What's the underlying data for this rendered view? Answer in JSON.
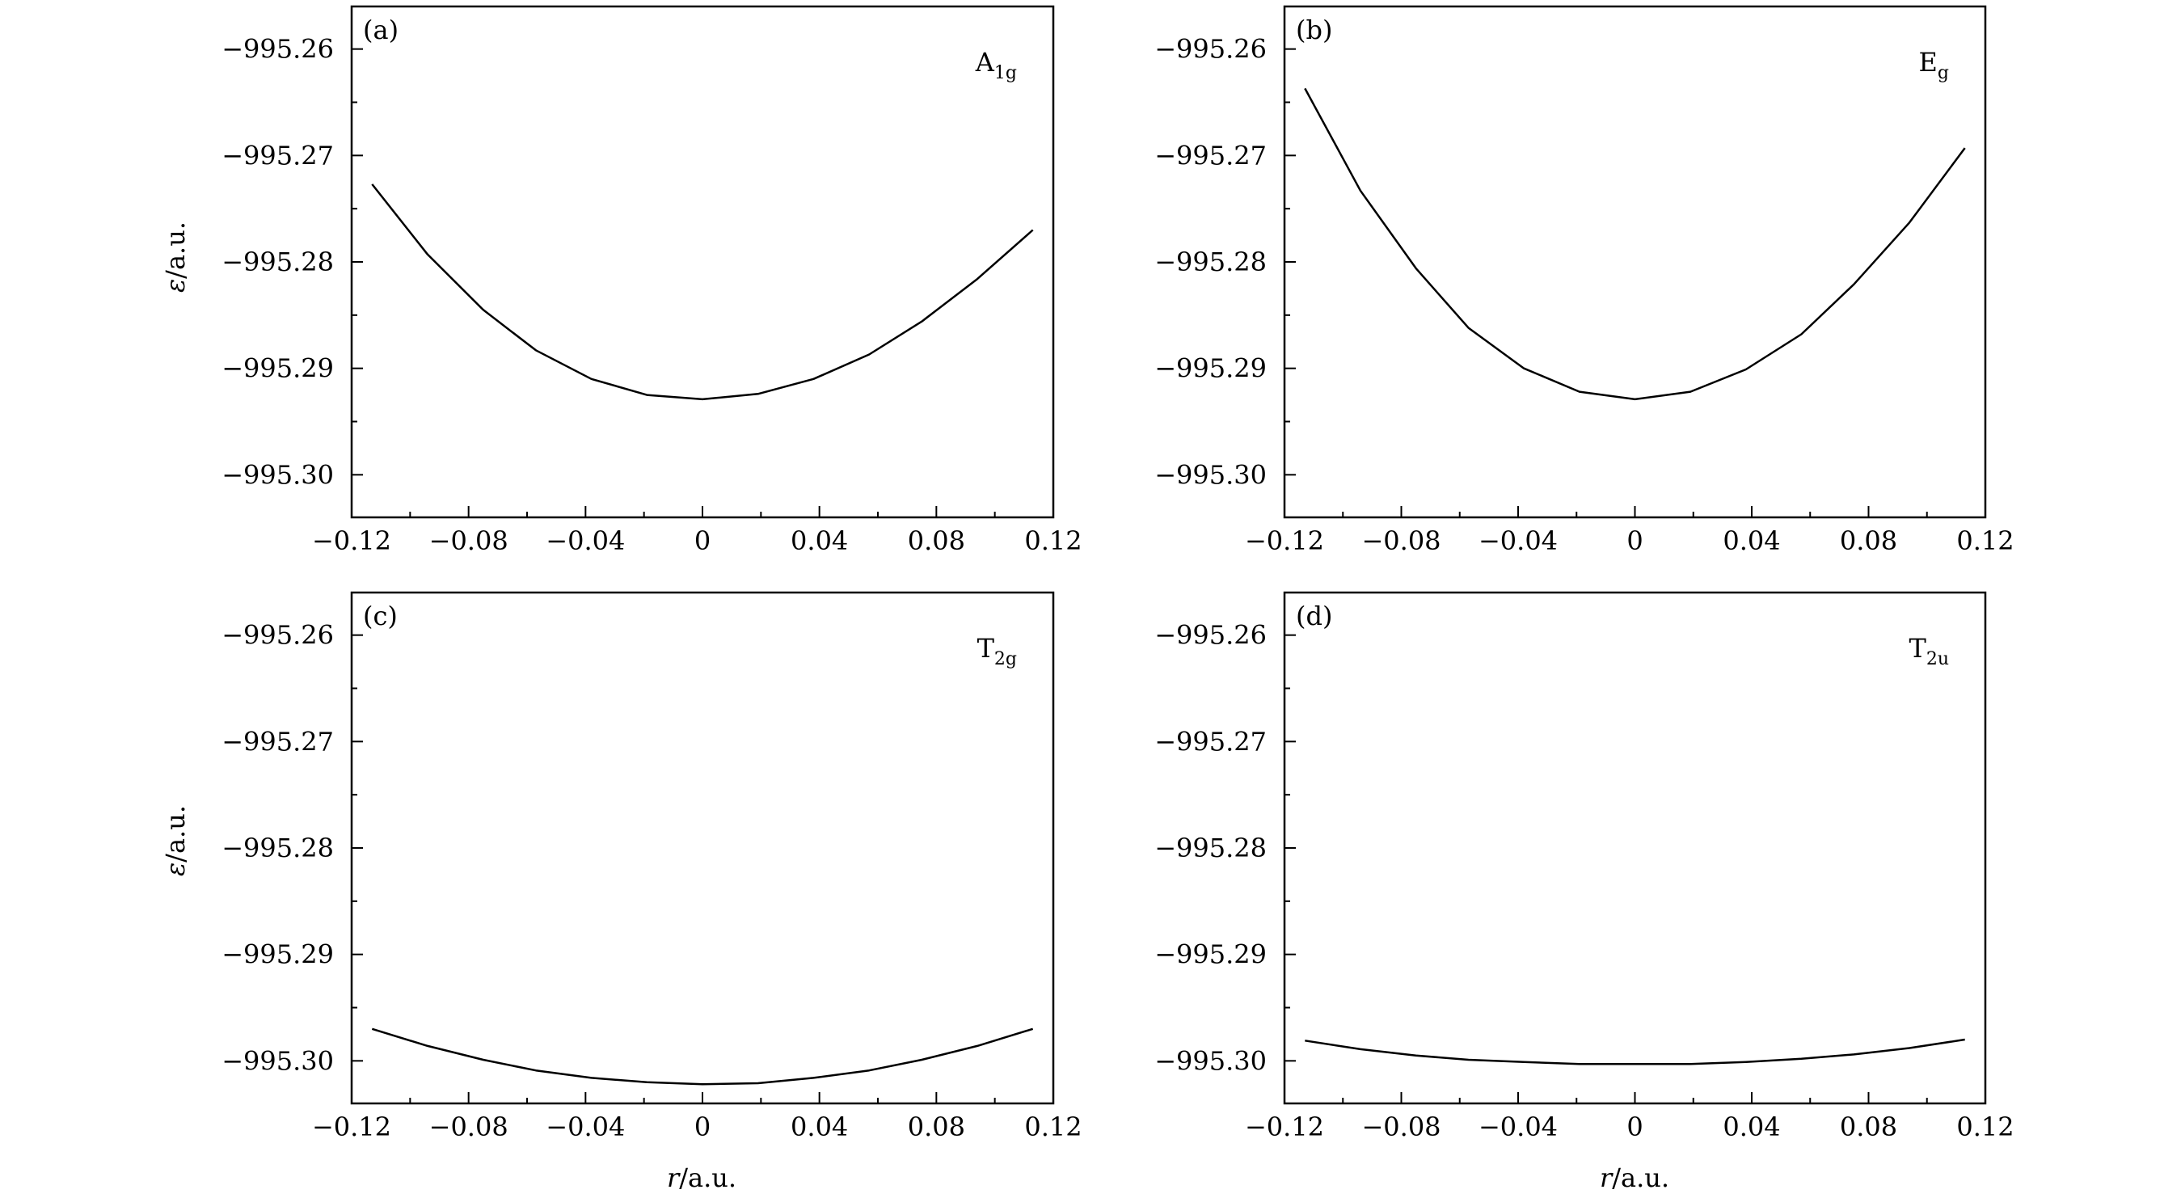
{
  "figure": {
    "xlabel_var": "r",
    "xlabel_unit": "/a.u.",
    "ylabel_var": "ε",
    "ylabel_unit": "/a.u."
  },
  "chart_data": [
    {
      "type": "line",
      "panel": "(a)",
      "mode_base": "A",
      "mode_sub": "1g",
      "xlim": [
        -0.12,
        0.12
      ],
      "ylim": [
        -995.304,
        -995.256
      ],
      "xticks": [
        -0.12,
        -0.08,
        -0.04,
        0,
        0.04,
        0.08,
        0.12
      ],
      "xtick_labels": [
        "−0.12",
        "−0.08",
        "−0.04",
        "0",
        "0.04",
        "0.08",
        "0.12"
      ],
      "yticks": [
        -995.26,
        -995.27,
        -995.28,
        -995.29,
        -995.3
      ],
      "ytick_labels": [
        "−995.26",
        "−995.27",
        "−995.28",
        "−995.29",
        "−995.30"
      ],
      "series": [
        {
          "x": [
            -0.113,
            -0.094,
            -0.075,
            -0.057,
            -0.038,
            -0.019,
            0,
            0.019,
            0.038,
            0.057,
            0.075,
            0.094,
            0.113
          ],
          "y": [
            -995.2727,
            -995.2793,
            -995.2845,
            -995.2883,
            -995.291,
            -995.2925,
            -995.2929,
            -995.2924,
            -995.291,
            -995.2887,
            -995.2856,
            -995.2816,
            -995.277
          ]
        }
      ]
    },
    {
      "type": "line",
      "panel": "(b)",
      "mode_base": "E",
      "mode_sub": "g",
      "xlim": [
        -0.12,
        0.12
      ],
      "ylim": [
        -995.304,
        -995.256
      ],
      "xticks": [
        -0.12,
        -0.08,
        -0.04,
        0,
        0.04,
        0.08,
        0.12
      ],
      "xtick_labels": [
        "−0.12",
        "−0.08",
        "−0.04",
        "0",
        "0.04",
        "0.08",
        "0.12"
      ],
      "yticks": [
        -995.26,
        -995.27,
        -995.28,
        -995.29,
        -995.3
      ],
      "ytick_labels": [
        "−995.26",
        "−995.27",
        "−995.28",
        "−995.29",
        "−995.30"
      ],
      "series": [
        {
          "x": [
            -0.113,
            -0.094,
            -0.075,
            -0.057,
            -0.038,
            -0.019,
            0,
            0.019,
            0.038,
            0.057,
            0.075,
            0.094,
            0.113
          ],
          "y": [
            -995.2637,
            -995.2733,
            -995.2806,
            -995.2862,
            -995.29,
            -995.2922,
            -995.2929,
            -995.2922,
            -995.2901,
            -995.2868,
            -995.2821,
            -995.2763,
            -995.2693
          ]
        }
      ]
    },
    {
      "type": "line",
      "panel": "(c)",
      "mode_base": "T",
      "mode_sub": "2g",
      "xlim": [
        -0.12,
        0.12
      ],
      "ylim": [
        -995.304,
        -995.256
      ],
      "xticks": [
        -0.12,
        -0.08,
        -0.04,
        0,
        0.04,
        0.08,
        0.12
      ],
      "xtick_labels": [
        "−0.12",
        "−0.08",
        "−0.04",
        "0",
        "0.04",
        "0.08",
        "0.12"
      ],
      "yticks": [
        -995.26,
        -995.27,
        -995.28,
        -995.29,
        -995.3
      ],
      "ytick_labels": [
        "−995.26",
        "−995.27",
        "−995.28",
        "−995.29",
        "−995.30"
      ],
      "series": [
        {
          "x": [
            -0.113,
            -0.094,
            -0.075,
            -0.057,
            -0.038,
            -0.019,
            0,
            0.019,
            0.038,
            0.057,
            0.075,
            0.094,
            0.113
          ],
          "y": [
            -995.297,
            -995.2986,
            -995.2999,
            -995.3009,
            -995.3016,
            -995.302,
            -995.3022,
            -995.3021,
            -995.3016,
            -995.3009,
            -995.2999,
            -995.2986,
            -995.297
          ]
        }
      ]
    },
    {
      "type": "line",
      "panel": "(d)",
      "mode_base": "T",
      "mode_sub": "2u",
      "xlim": [
        -0.12,
        0.12
      ],
      "ylim": [
        -995.304,
        -995.256
      ],
      "xticks": [
        -0.12,
        -0.08,
        -0.04,
        0,
        0.04,
        0.08,
        0.12
      ],
      "xtick_labels": [
        "−0.12",
        "−0.08",
        "−0.04",
        "0",
        "0.04",
        "0.08",
        "0.12"
      ],
      "yticks": [
        -995.26,
        -995.27,
        -995.28,
        -995.29,
        -995.3
      ],
      "ytick_labels": [
        "−995.26",
        "−995.27",
        "−995.28",
        "−995.29",
        "−995.30"
      ],
      "series": [
        {
          "x": [
            -0.113,
            -0.094,
            -0.075,
            -0.057,
            -0.038,
            -0.019,
            0,
            0.019,
            0.038,
            0.057,
            0.075,
            0.094,
            0.113
          ],
          "y": [
            -995.2981,
            -995.2989,
            -995.2995,
            -995.2999,
            -995.3001,
            -995.3003,
            -995.3003,
            -995.3003,
            -995.3001,
            -995.2998,
            -995.2994,
            -995.2988,
            -995.298
          ]
        }
      ]
    }
  ]
}
